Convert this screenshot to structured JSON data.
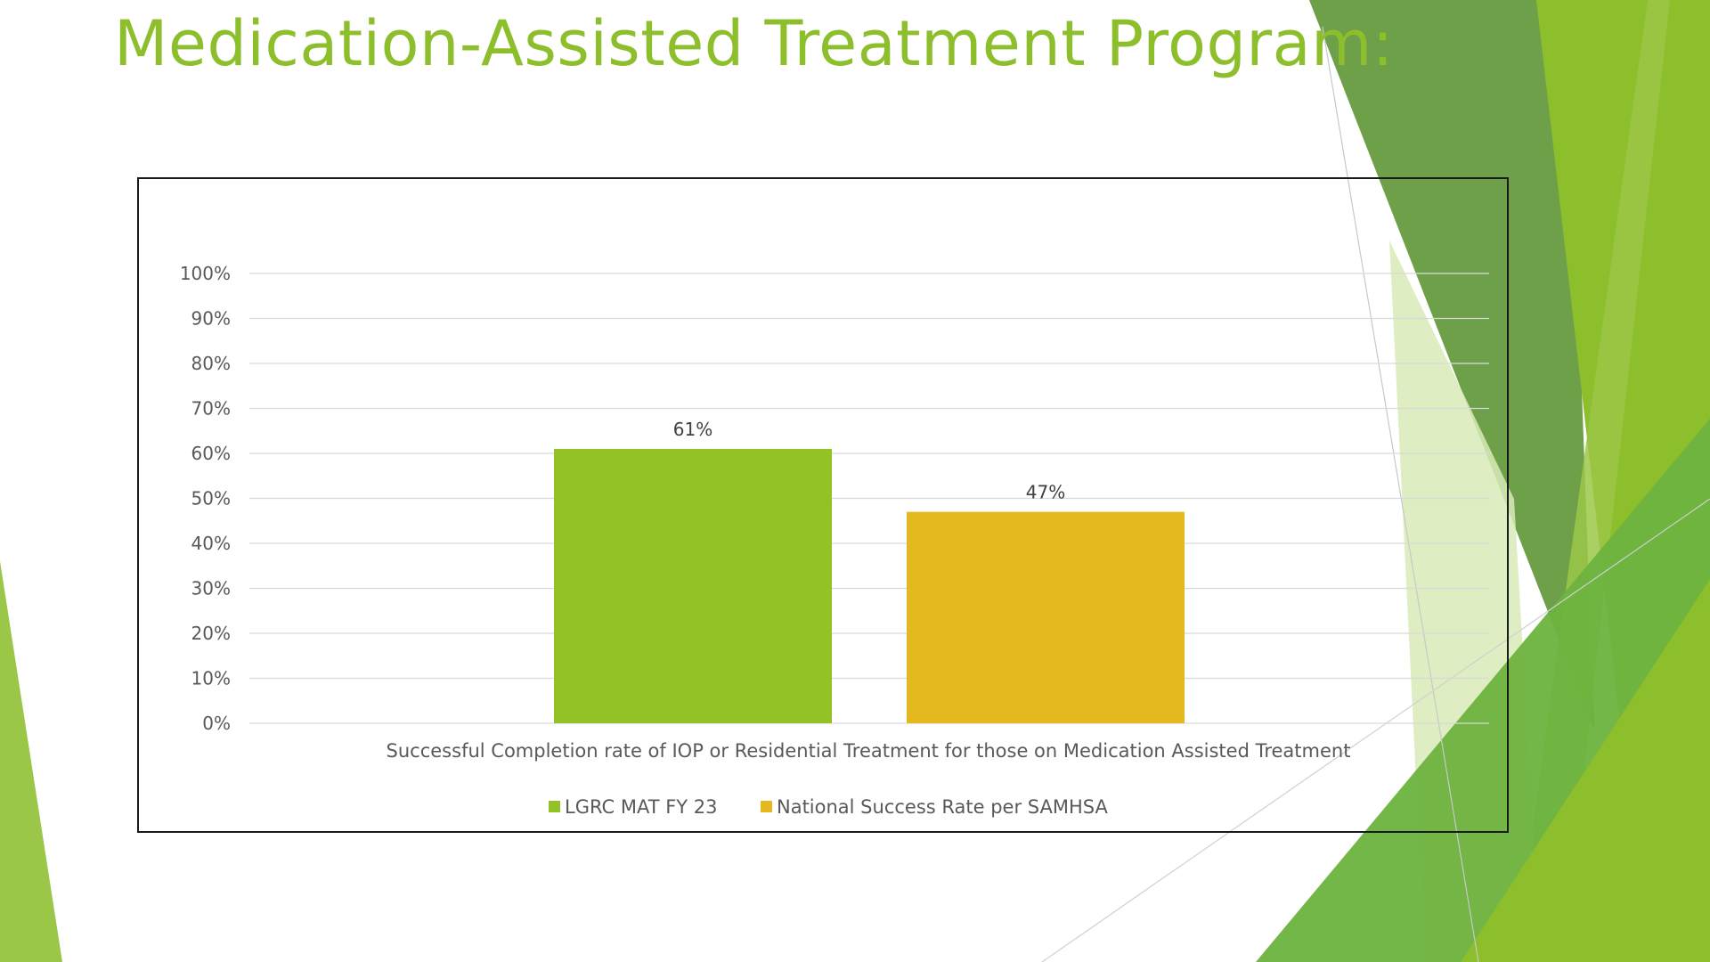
{
  "slide": {
    "title": "Medication-Assisted Treatment Program:"
  },
  "colors": {
    "title": "#8DBE2B",
    "series_1": "#92C225",
    "series_2": "#E4B920",
    "gridline": "#D9D9D9",
    "decor_dark": "#5E9535",
    "decor_mid": "#6DB33F",
    "decor_light": "#9BC748",
    "decor_pale": "#D9EAB8"
  },
  "chart_data": {
    "type": "bar",
    "categories": [
      "Successful Completion rate of IOP or Residential Treatment for those on Medication Assisted Treatment"
    ],
    "series": [
      {
        "name": "LGRC MAT FY 23",
        "values": [
          61
        ],
        "label": "61%"
      },
      {
        "name": "National Success Rate per SAMHSA",
        "values": [
          47
        ],
        "label": "47%"
      }
    ],
    "y_ticks": [
      "0%",
      "10%",
      "20%",
      "30%",
      "40%",
      "50%",
      "60%",
      "70%",
      "80%",
      "90%",
      "100%"
    ],
    "ylim": [
      0,
      100
    ],
    "grid": true,
    "legend_position": "bottom"
  }
}
